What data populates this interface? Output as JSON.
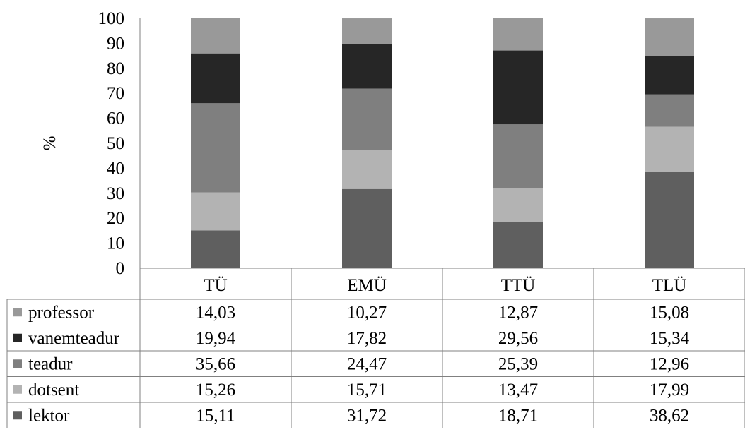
{
  "chart_data": {
    "type": "bar",
    "stacked": true,
    "ylabel": "%",
    "ylim": [
      0,
      100
    ],
    "yticks": [
      0,
      10,
      20,
      30,
      40,
      50,
      60,
      70,
      80,
      90,
      100
    ],
    "categories": [
      "TÜ",
      "EMÜ",
      "TTÜ",
      "TLÜ"
    ],
    "series": [
      {
        "name": "lektor",
        "color": "#5f5f5f",
        "values": [
          15.11,
          31.72,
          18.71,
          38.62
        ],
        "labels": [
          "15,11",
          "31,72",
          "18,71",
          "38,62"
        ]
      },
      {
        "name": "dotsent",
        "color": "#b3b3b3",
        "values": [
          15.26,
          15.71,
          13.47,
          17.99
        ],
        "labels": [
          "15,26",
          "15,71",
          "13,47",
          "17,99"
        ]
      },
      {
        "name": "teadur",
        "color": "#7f7f7f",
        "values": [
          35.66,
          24.47,
          25.39,
          12.96
        ],
        "labels": [
          "35,66",
          "24,47",
          "25,39",
          "12,96"
        ]
      },
      {
        "name": "vanemteadur",
        "color": "#262626",
        "values": [
          19.94,
          17.82,
          29.56,
          15.34
        ],
        "labels": [
          "19,94",
          "17,82",
          "29,56",
          "15,34"
        ]
      },
      {
        "name": "professor",
        "color": "#999999",
        "values": [
          14.03,
          10.27,
          12.87,
          15.08
        ],
        "labels": [
          "14,03",
          "10,27",
          "12,87",
          "15,08"
        ]
      }
    ],
    "table_row_order": [
      "professor",
      "vanemteadur",
      "teadur",
      "dotsent",
      "lektor"
    ],
    "grid": false,
    "legend": "data-table"
  }
}
